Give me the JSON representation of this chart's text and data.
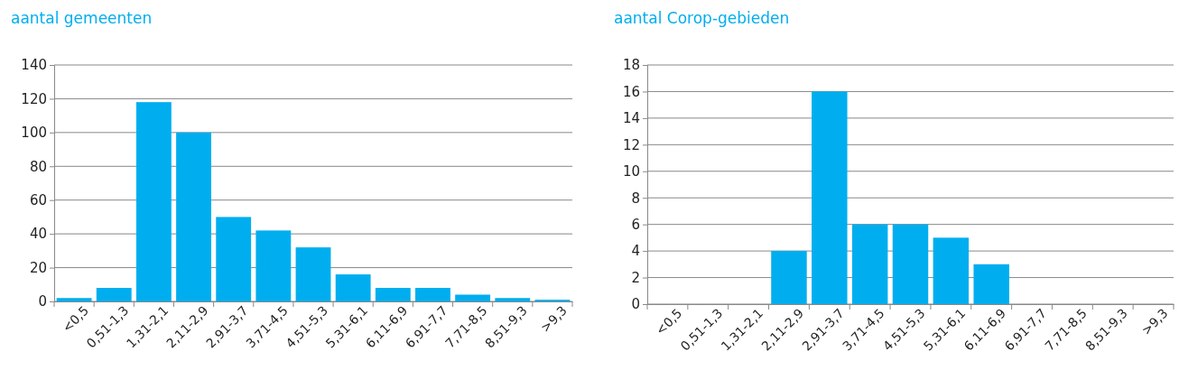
{
  "chart_data": [
    {
      "type": "bar",
      "title": "aantal gemeenten",
      "categories": [
        "<0,5",
        "0,51-1,3",
        "1,31-2,1",
        "2,11-2,9",
        "2,91-3,7",
        "3,71-4,5",
        "4,51-5,3",
        "5,31-6,1",
        "6,11-6,9",
        "6,91-7,7",
        "7,71-8,5",
        "8,51-9,3",
        ">9,3"
      ],
      "values": [
        2,
        8,
        118,
        100,
        50,
        42,
        32,
        16,
        8,
        8,
        4,
        2,
        1
      ],
      "color": "#00aeef",
      "ylim": [
        0,
        140
      ],
      "yticks": [
        0,
        20,
        40,
        60,
        80,
        100,
        120,
        140
      ],
      "grid": "y"
    },
    {
      "type": "bar",
      "title": "aantal Corop-gebieden",
      "categories": [
        "<0,5",
        "0,51-1,3",
        "1,31-2,1",
        "2,11-2,9",
        "2,91-3,7",
        "3,71-4,5",
        "4,51-5,3",
        "5,31-6,1",
        "6,11-6,9",
        "6,91-7,7",
        "7,71-8,5",
        "8,51-9,3",
        ">9,3"
      ],
      "values": [
        0,
        0,
        0,
        4,
        16,
        6,
        6,
        5,
        3,
        0,
        0,
        0,
        0
      ],
      "color": "#00aeef",
      "ylim": [
        0,
        18
      ],
      "yticks": [
        0,
        2,
        4,
        6,
        8,
        10,
        12,
        14,
        16,
        18
      ],
      "grid": "y"
    }
  ]
}
